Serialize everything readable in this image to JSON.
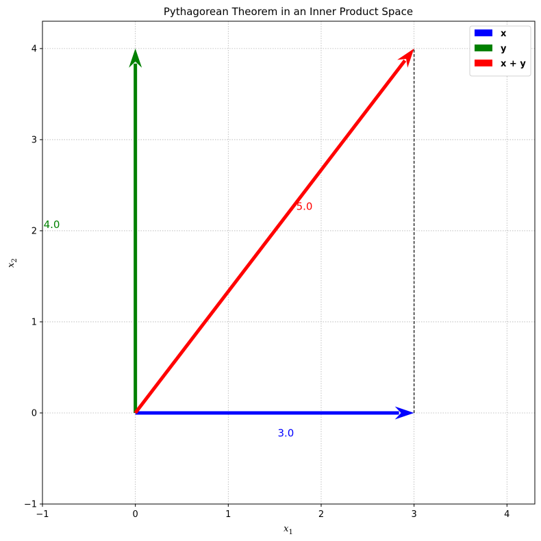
{
  "chart_data": {
    "type": "quiver",
    "title": "Pythagorean Theorem in an Inner Product Space",
    "xlabel": "x",
    "xlabel_sub": "1",
    "ylabel": "x",
    "ylabel_sub": "2",
    "xlim": [
      -1,
      4.3
    ],
    "ylim": [
      -1,
      4.3
    ],
    "xticks": [
      -1,
      0,
      1,
      2,
      3,
      4
    ],
    "yticks": [
      -1,
      0,
      1,
      2,
      3,
      4
    ],
    "xtick_labels": [
      "−1",
      "0",
      "1",
      "2",
      "3",
      "4"
    ],
    "ytick_labels": [
      "−1",
      "0",
      "1",
      "2",
      "3",
      "4"
    ],
    "grid": true,
    "legend_position": "top-right",
    "vectors": [
      {
        "name": "x",
        "legend_label": "x",
        "color": "#0000ff",
        "start": [
          0,
          0
        ],
        "end": [
          3,
          0
        ]
      },
      {
        "name": "y",
        "legend_label": "y",
        "color": "#008000",
        "start": [
          0,
          0
        ],
        "end": [
          0,
          4
        ]
      },
      {
        "name": "x+y",
        "legend_label": "x + y",
        "color": "#ff0000",
        "start": [
          0,
          0
        ],
        "end": [
          3,
          4
        ]
      }
    ],
    "guide_line": {
      "style": "dashed",
      "color": "#000000",
      "start": [
        3,
        0
      ],
      "end": [
        3,
        4
      ]
    },
    "annotations": [
      {
        "text": "3.0",
        "color": "#0000ff",
        "x": 1.62,
        "y": -0.26
      },
      {
        "text": "4.0",
        "color": "#008000",
        "x": -0.9,
        "y": 2.03
      },
      {
        "text": "5.0",
        "color": "#ff0000",
        "x": 1.82,
        "y": 2.23
      }
    ]
  }
}
